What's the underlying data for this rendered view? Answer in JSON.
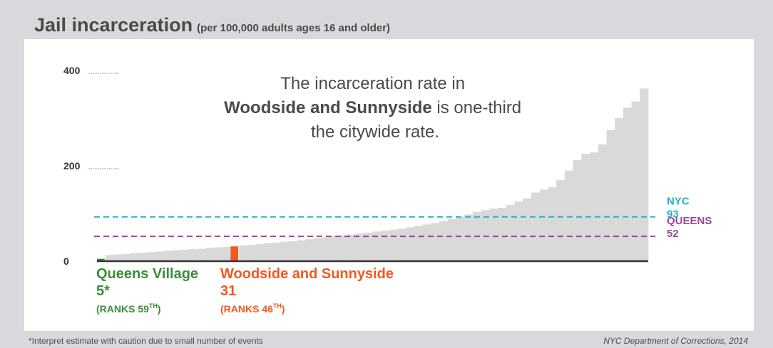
{
  "title": "Jail incarceration",
  "subtitle": "(per 100,000 adults ages 16 and older)",
  "annotation": {
    "line1": "The incarceration rate in",
    "line2_bold": "Woodside and Sunnyside",
    "line2_rest": " is one-third",
    "line3": "the citywide rate."
  },
  "footnote_left": "*Interpret estimate with caution due to small number of events",
  "footnote_right": "NYC Department of Corrections, 2014",
  "colors": {
    "bars": "#d9d9d9",
    "queens_village": "#3c8c3c",
    "woodside": "#f05a22",
    "nyc": "#25b4c8",
    "queens": "#a0449a",
    "axis": "#333333",
    "text": "#4a4a4a"
  },
  "chart_data": {
    "type": "bar",
    "ylim": [
      0,
      400
    ],
    "yticks": [
      0,
      200,
      400
    ],
    "values": [
      5,
      13,
      14,
      15,
      17,
      18,
      19,
      20,
      22,
      23,
      24,
      25,
      26,
      28,
      29,
      30,
      31,
      33,
      34,
      36,
      38,
      39,
      41,
      42,
      44,
      46,
      48,
      50,
      52,
      54,
      56,
      58,
      60,
      62,
      64,
      66,
      68,
      71,
      74,
      77,
      80,
      84,
      88,
      93,
      98,
      103,
      107,
      110,
      112,
      118,
      125,
      132,
      144,
      150,
      155,
      170,
      190,
      212,
      225,
      228,
      245,
      275,
      300,
      322,
      335,
      362
    ],
    "reference_lines": [
      {
        "label": "NYC",
        "value": 93
      },
      {
        "label": "QUEENS",
        "value": 52
      }
    ],
    "highlights": [
      {
        "name": "Queens Village",
        "value_label": "5*",
        "rank_prefix": "(RANKS 59",
        "rank_sup": "TH",
        "rank_suffix": ")",
        "index": 0
      },
      {
        "name": "Woodside and Sunnyside",
        "value_label": "31",
        "rank_prefix": "(RANKS 46",
        "rank_sup": "TH",
        "rank_suffix": ")",
        "index": 16
      }
    ]
  }
}
